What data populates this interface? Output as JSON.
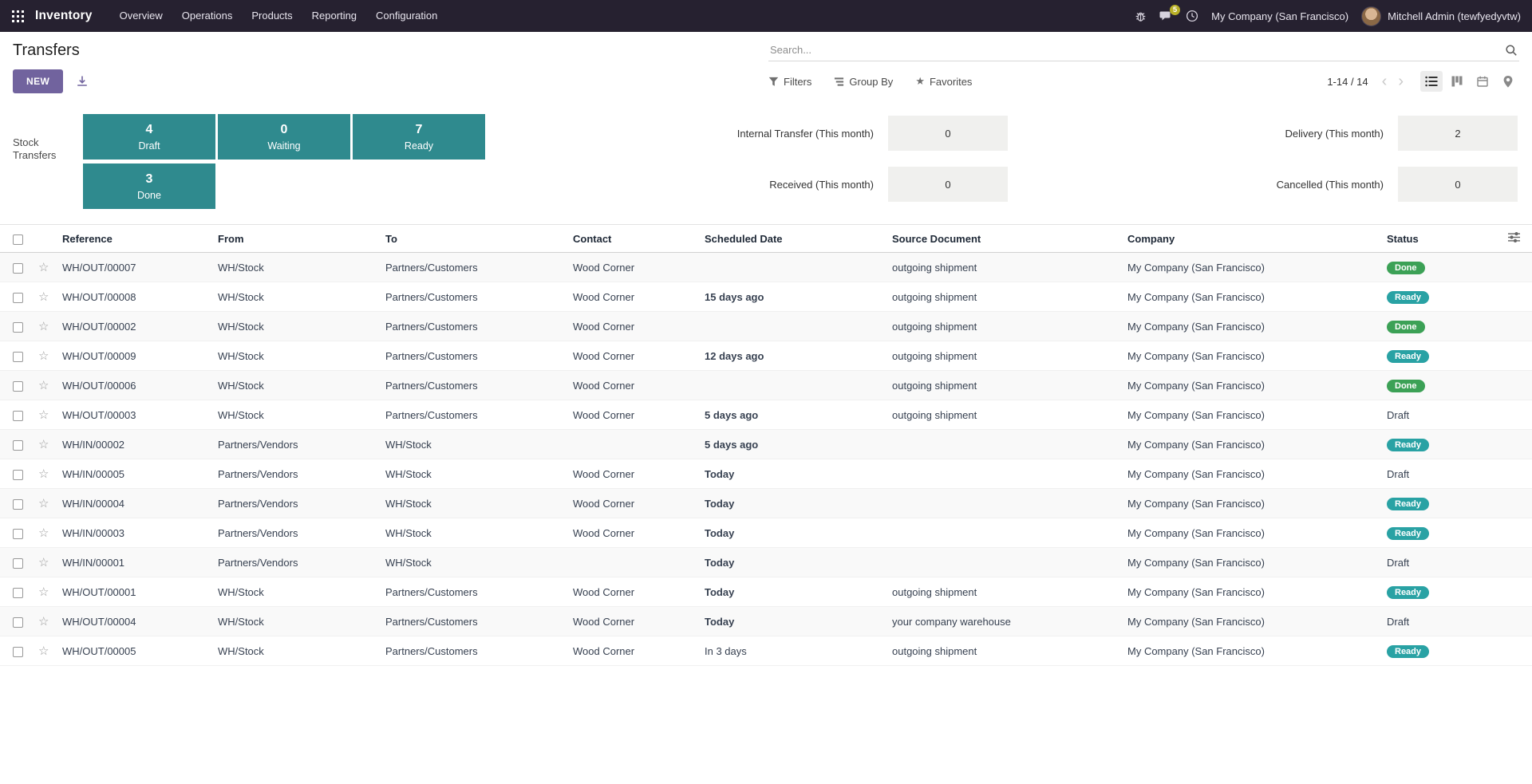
{
  "colors": {
    "navbar_bg": "#262130",
    "accent": "#71639e",
    "box_teal": "#2f8a8e",
    "status_done": "#3ca156",
    "status_ready": "#29a2a4",
    "date_late": "#d23f3a",
    "date_today": "#e09600",
    "badge_count": "#b9b028"
  },
  "navbar": {
    "app_name": "Inventory",
    "menus": [
      "Overview",
      "Operations",
      "Products",
      "Reporting",
      "Configuration"
    ],
    "message_badge": "5",
    "company": "My Company (San Francisco)",
    "user": "Mitchell Admin (tewfyedyvtw)"
  },
  "header": {
    "title": "Transfers",
    "search_placeholder": "Search..."
  },
  "controls": {
    "new_label": "NEW",
    "filters_label": "Filters",
    "group_by_label": "Group By",
    "favorites_label": "Favorites",
    "pager": "1-14 / 14"
  },
  "dashboard": {
    "label": "Stock Transfers",
    "boxes": [
      {
        "count": "4",
        "label": "Draft"
      },
      {
        "count": "0",
        "label": "Waiting"
      },
      {
        "count": "7",
        "label": "Ready"
      },
      {
        "count": "3",
        "label": "Done"
      }
    ],
    "stats": [
      {
        "label": "Internal Transfer (This month)",
        "value": "0"
      },
      {
        "label": "Delivery (This month)",
        "value": "2"
      },
      {
        "label": "Received (This month)",
        "value": "0"
      },
      {
        "label": "Cancelled (This month)",
        "value": "0"
      }
    ]
  },
  "table": {
    "columns": [
      "Reference",
      "From",
      "To",
      "Contact",
      "Scheduled Date",
      "Source Document",
      "Company",
      "Status"
    ],
    "rows": [
      {
        "reference": "WH/OUT/00007",
        "from": "WH/Stock",
        "to": "Partners/Customers",
        "contact": "Wood Corner",
        "scheduled_date": "",
        "date_tone": "",
        "source_document": "outgoing shipment",
        "company": "My Company (San Francisco)",
        "status": "Done",
        "status_kind": "done"
      },
      {
        "reference": "WH/OUT/00008",
        "from": "WH/Stock",
        "to": "Partners/Customers",
        "contact": "Wood Corner",
        "scheduled_date": "15 days ago",
        "date_tone": "late",
        "source_document": "outgoing shipment",
        "company": "My Company (San Francisco)",
        "status": "Ready",
        "status_kind": "ready"
      },
      {
        "reference": "WH/OUT/00002",
        "from": "WH/Stock",
        "to": "Partners/Customers",
        "contact": "Wood Corner",
        "scheduled_date": "",
        "date_tone": "",
        "source_document": "outgoing shipment",
        "company": "My Company (San Francisco)",
        "status": "Done",
        "status_kind": "done"
      },
      {
        "reference": "WH/OUT/00009",
        "from": "WH/Stock",
        "to": "Partners/Customers",
        "contact": "Wood Corner",
        "scheduled_date": "12 days ago",
        "date_tone": "late",
        "source_document": "outgoing shipment",
        "company": "My Company (San Francisco)",
        "status": "Ready",
        "status_kind": "ready"
      },
      {
        "reference": "WH/OUT/00006",
        "from": "WH/Stock",
        "to": "Partners/Customers",
        "contact": "Wood Corner",
        "scheduled_date": "",
        "date_tone": "",
        "source_document": "outgoing shipment",
        "company": "My Company (San Francisco)",
        "status": "Done",
        "status_kind": "done"
      },
      {
        "reference": "WH/OUT/00003",
        "from": "WH/Stock",
        "to": "Partners/Customers",
        "contact": "Wood Corner",
        "scheduled_date": "5 days ago",
        "date_tone": "late",
        "source_document": "outgoing shipment",
        "company": "My Company (San Francisco)",
        "status": "Draft",
        "status_kind": "draft"
      },
      {
        "reference": "WH/IN/00002",
        "from": "Partners/Vendors",
        "to": "WH/Stock",
        "contact": "",
        "scheduled_date": "5 days ago",
        "date_tone": "late",
        "source_document": "",
        "company": "My Company (San Francisco)",
        "status": "Ready",
        "status_kind": "ready"
      },
      {
        "reference": "WH/IN/00005",
        "from": "Partners/Vendors",
        "to": "WH/Stock",
        "contact": "Wood Corner",
        "scheduled_date": "Today",
        "date_tone": "today",
        "source_document": "",
        "company": "My Company (San Francisco)",
        "status": "Draft",
        "status_kind": "draft"
      },
      {
        "reference": "WH/IN/00004",
        "from": "Partners/Vendors",
        "to": "WH/Stock",
        "contact": "Wood Corner",
        "scheduled_date": "Today",
        "date_tone": "today",
        "source_document": "",
        "company": "My Company (San Francisco)",
        "status": "Ready",
        "status_kind": "ready"
      },
      {
        "reference": "WH/IN/00003",
        "from": "Partners/Vendors",
        "to": "WH/Stock",
        "contact": "Wood Corner",
        "scheduled_date": "Today",
        "date_tone": "today",
        "source_document": "",
        "company": "My Company (San Francisco)",
        "status": "Ready",
        "status_kind": "ready"
      },
      {
        "reference": "WH/IN/00001",
        "from": "Partners/Vendors",
        "to": "WH/Stock",
        "contact": "",
        "scheduled_date": "Today",
        "date_tone": "today",
        "source_document": "",
        "company": "My Company (San Francisco)",
        "status": "Draft",
        "status_kind": "draft"
      },
      {
        "reference": "WH/OUT/00001",
        "from": "WH/Stock",
        "to": "Partners/Customers",
        "contact": "Wood Corner",
        "scheduled_date": "Today",
        "date_tone": "today",
        "source_document": "outgoing shipment",
        "company": "My Company (San Francisco)",
        "status": "Ready",
        "status_kind": "ready"
      },
      {
        "reference": "WH/OUT/00004",
        "from": "WH/Stock",
        "to": "Partners/Customers",
        "contact": "Wood Corner",
        "scheduled_date": "Today",
        "date_tone": "today",
        "source_document": "your company warehouse",
        "company": "My Company (San Francisco)",
        "status": "Draft",
        "status_kind": "draft"
      },
      {
        "reference": "WH/OUT/00005",
        "from": "WH/Stock",
        "to": "Partners/Customers",
        "contact": "Wood Corner",
        "scheduled_date": "In 3 days",
        "date_tone": "",
        "source_document": "outgoing shipment",
        "company": "My Company (San Francisco)",
        "status": "Ready",
        "status_kind": "ready"
      }
    ]
  }
}
